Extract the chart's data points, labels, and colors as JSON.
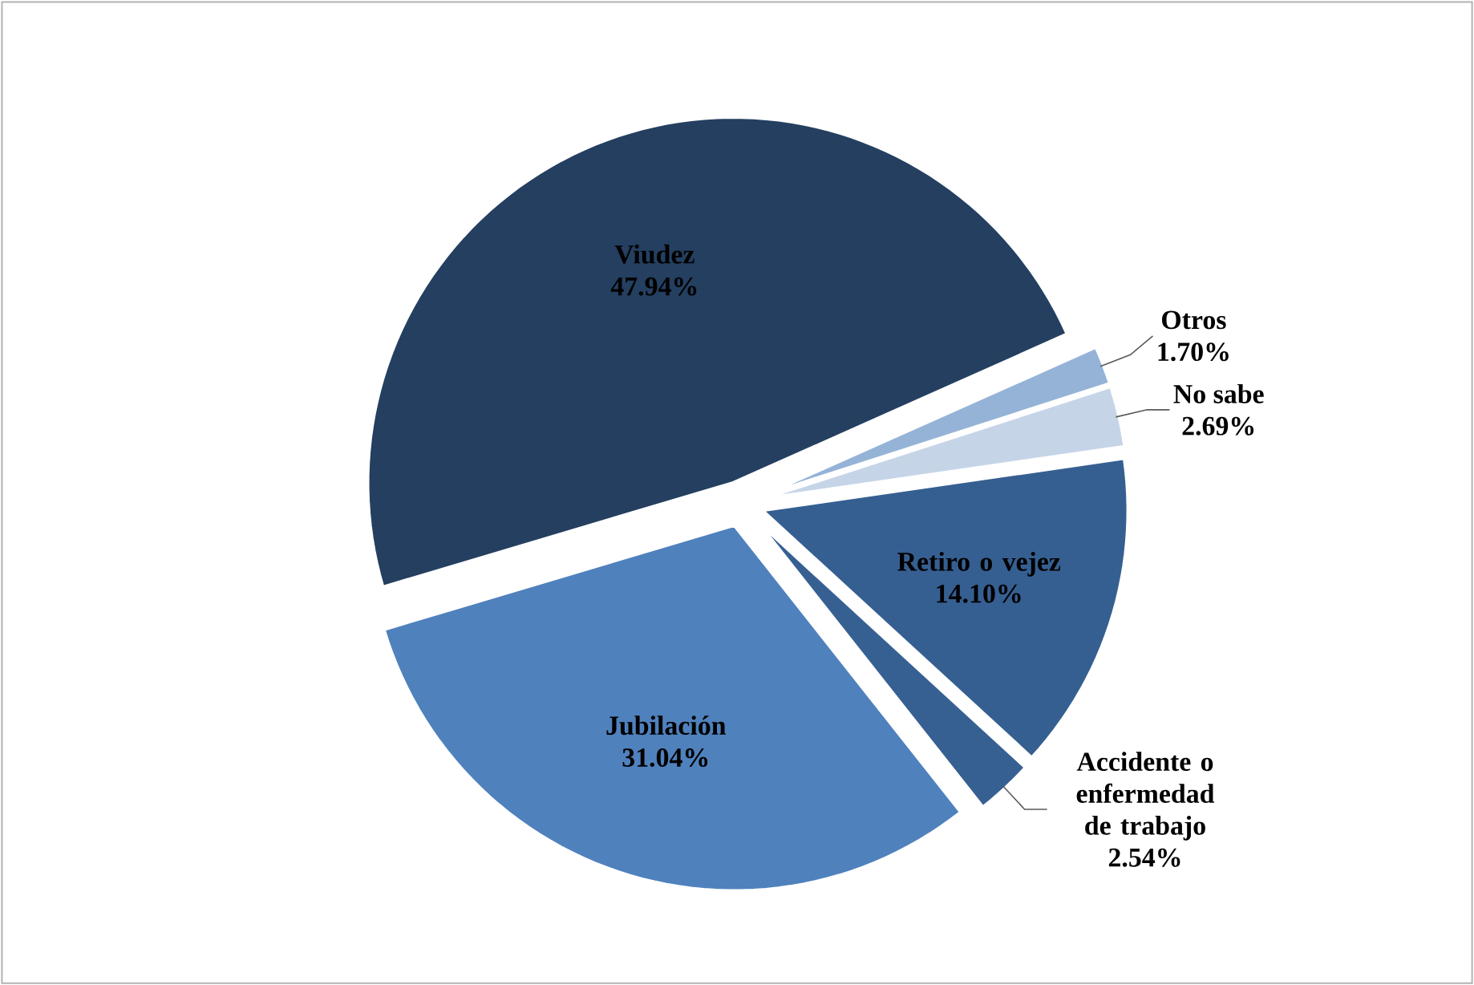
{
  "chart_data": {
    "type": "pie",
    "categories": [
      "Viudez",
      "Jubilación",
      "Accidente o enfermedad de trabajo",
      "Retiro o vejez",
      "No sabe",
      "Otros"
    ],
    "values": [
      47.94,
      31.04,
      2.54,
      14.1,
      2.69,
      1.7
    ],
    "value_labels": [
      "47.94%",
      "31.04%",
      "2.54%",
      "14.10%",
      "2.69%",
      "1.70%"
    ],
    "colors": [
      "#243f60",
      "#4f81bd",
      "#376092",
      "#365f91",
      "#c6d4e8",
      "#95b3d7"
    ]
  }
}
